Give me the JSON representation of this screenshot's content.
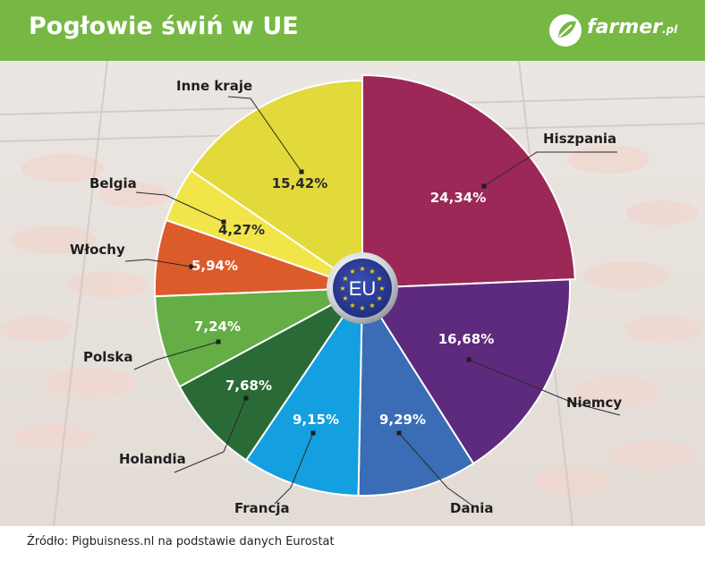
{
  "header": {
    "title": "Pogłowie świń w UE",
    "brand_name": "farmer",
    "brand_suffix": ".pl",
    "brand_icon": "leaf-icon"
  },
  "center_badge": {
    "label": "EU",
    "icon": "eu-stars-icon"
  },
  "source": "Źródło: Pigbuisness.nl na podstawie danych Eurostat",
  "colors": {
    "header_bg": "#76b843",
    "background": "#ece7e1",
    "hiszpania": "#9b2857",
    "niemcy": "#5e2a7e",
    "dania": "#3a6db5",
    "francja": "#139fe0",
    "holandia": "#2a6a36",
    "polska": "#64ae45",
    "wlochy": "#dc5b2b",
    "belgia": "#f2e54a",
    "inne_kraje": "#e2d93b"
  },
  "chart_data": {
    "type": "pie",
    "title": "Pogłowie świń w UE",
    "categories": [
      "Hiszpania",
      "Niemcy",
      "Dania",
      "Francja",
      "Holandia",
      "Polska",
      "Włochy",
      "Belgia",
      "Inne kraje"
    ],
    "values": [
      24.34,
      16.68,
      9.29,
      9.15,
      7.68,
      7.24,
      5.94,
      4.27,
      15.42
    ],
    "value_labels": [
      "24,34%",
      "16,68%",
      "9,29%",
      "9,15%",
      "7,68%",
      "7,24%",
      "5,94%",
      "4,27%",
      "15,42%"
    ],
    "colors": [
      "#9b2857",
      "#5e2a7e",
      "#3a6db5",
      "#139fe0",
      "#2a6a36",
      "#64ae45",
      "#dc5b2b",
      "#f2e54a",
      "#e2d93b"
    ],
    "start_angle_deg": 0,
    "direction": "clockwise",
    "legend": "none (callout labels)"
  }
}
